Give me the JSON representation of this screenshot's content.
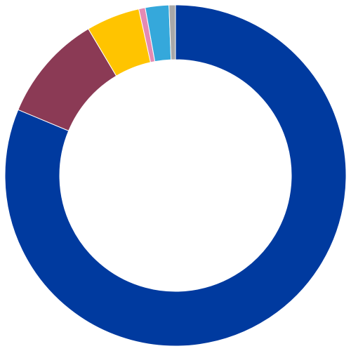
{
  "chart_data": {
    "type": "pie",
    "variant": "donut",
    "title": "",
    "legend": "none",
    "slices": [
      {
        "value": 80.0,
        "color": "#003A9F"
      },
      {
        "value": 10.0,
        "color": "#8B3A55"
      },
      {
        "value": 5.0,
        "color": "#FFC400"
      },
      {
        "value": 0.6,
        "color": "#E48AB3"
      },
      {
        "value": 2.2,
        "color": "#35A8DB"
      },
      {
        "value": 0.6,
        "color": "#A8A8A8"
      }
    ]
  }
}
